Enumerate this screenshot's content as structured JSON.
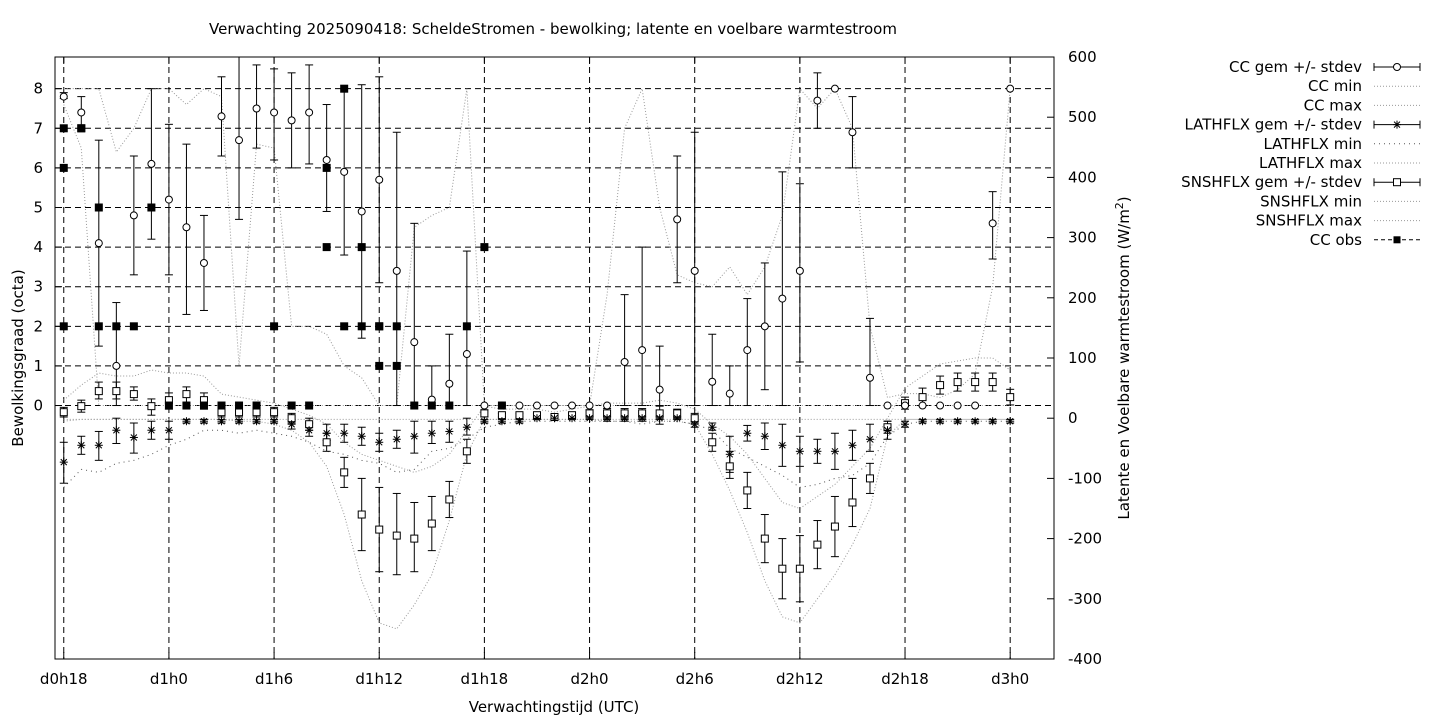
{
  "chart_data": {
    "type": "scatter",
    "title": "Verwachting 2025090418: ScheldeStromen - bewolking; latente en voelbare warmtestroom",
    "xlabel": "Verwachtingstijd (UTC)",
    "ylabel": "Bewolkingsgraad (octa)",
    "y2label_main": "Latente en Voelbare warmtestroom (W/m",
    "y2label_sup": "2",
    "y2label_end": ")",
    "xlim": [
      -0.5,
      56.5
    ],
    "ylim": [
      -6.4,
      8.8
    ],
    "y2lim": [
      -400,
      600
    ],
    "grid": true,
    "legend_position": "outside-right",
    "x_tick_positions": [
      0,
      6,
      12,
      18,
      24,
      30,
      36,
      42,
      48,
      54
    ],
    "x_tick_labels": [
      "d0h18",
      "d1h0",
      "d1h6",
      "d1h12",
      "d1h18",
      "d2h0",
      "d2h6",
      "d2h12",
      "d2h18",
      "d3h0"
    ],
    "y_ticks": [
      0,
      1,
      2,
      3,
      4,
      5,
      6,
      7,
      8
    ],
    "y2_ticks": [
      -400,
      -300,
      -200,
      -100,
      0,
      100,
      200,
      300,
      400,
      500,
      600
    ],
    "legend": [
      {
        "label": "CC gem +/- stdev",
        "style": "errbar-circle"
      },
      {
        "label": "CC min",
        "style": "dotted"
      },
      {
        "label": "CC max",
        "style": "dotted"
      },
      {
        "label": "LATHFLX gem +/- stdev",
        "style": "errbar-star"
      },
      {
        "label": "LATHFLX min",
        "style": "dotted-sparse"
      },
      {
        "label": "LATHFLX max",
        "style": "dotted"
      },
      {
        "label": "SNSHFLX gem +/- stdev",
        "style": "errbar-square"
      },
      {
        "label": "SNSHFLX min",
        "style": "dotted"
      },
      {
        "label": "SNSHFLX max",
        "style": "dotted"
      },
      {
        "label": "CC obs",
        "style": "obs-square"
      }
    ],
    "cc_mean": {
      "x": [
        0,
        1,
        2,
        3,
        4,
        5,
        6,
        7,
        8,
        9,
        10,
        11,
        12,
        13,
        14,
        15,
        16,
        17,
        18,
        19,
        20,
        21,
        22,
        23,
        24,
        25,
        26,
        27,
        28,
        29,
        30,
        31,
        32,
        33,
        34,
        35,
        36,
        37,
        38,
        39,
        40,
        41,
        42,
        43,
        44,
        45,
        46,
        47,
        48,
        49,
        50,
        51,
        52,
        53,
        54
      ],
      "y": [
        7.8,
        7.4,
        4.1,
        1.0,
        4.8,
        6.1,
        5.2,
        4.5,
        3.6,
        7.3,
        6.7,
        7.5,
        7.4,
        7.2,
        7.4,
        6.2,
        5.9,
        4.9,
        5.7,
        3.4,
        1.6,
        0.15,
        0.55,
        1.3,
        0,
        0,
        0,
        0,
        0,
        0,
        0,
        0,
        1.1,
        1.4,
        0.4,
        4.7,
        3.4,
        0.6,
        0.3,
        1.4,
        2.0,
        2.7,
        3.4,
        7.7,
        8.0,
        6.9,
        0.7,
        0,
        0,
        0,
        0,
        0,
        0,
        4.6,
        8.0
      ],
      "lo": [
        7.75,
        7.0,
        1.5,
        0,
        3.3,
        4.2,
        3.3,
        2.3,
        2.4,
        6.3,
        4.7,
        6.5,
        6.2,
        6.0,
        6.1,
        4.9,
        3.8,
        1.7,
        3.1,
        0,
        0,
        0,
        0,
        0,
        0,
        0,
        0,
        0,
        0,
        0,
        0,
        0,
        0,
        0,
        0,
        3.1,
        0,
        0,
        0,
        0,
        0.4,
        0,
        1.1,
        7.0,
        8.0,
        6.0,
        0,
        0,
        0,
        0,
        0,
        0,
        0,
        3.7,
        8.0
      ],
      "hi": [
        7.9,
        7.8,
        6.7,
        2.6,
        6.3,
        8.0,
        7.1,
        6.6,
        4.8,
        8.3,
        8.8,
        8.6,
        8.5,
        8.4,
        8.6,
        7.6,
        8.0,
        8.1,
        8.3,
        6.9,
        4.6,
        1.0,
        1.8,
        3.9,
        0,
        0,
        0,
        0,
        0,
        0,
        0,
        0,
        2.8,
        4.0,
        1.5,
        6.3,
        6.9,
        1.8,
        1.0,
        2.7,
        3.6,
        5.9,
        5.6,
        8.4,
        8.0,
        7.8,
        2.2,
        0,
        0,
        0,
        0,
        0,
        0,
        5.4,
        8.0
      ]
    },
    "cc_min": {
      "x": [
        0,
        1,
        2,
        3,
        4,
        5,
        6,
        7,
        8,
        9,
        10,
        11,
        12,
        13,
        14,
        15,
        16,
        17,
        18,
        19,
        20,
        21,
        22,
        23,
        24,
        25,
        26,
        27,
        28,
        29,
        30,
        31,
        32,
        33,
        34,
        35,
        36,
        37,
        38,
        39,
        40,
        41,
        42,
        43,
        44,
        45,
        46,
        47,
        48,
        49,
        50,
        51,
        52,
        53,
        54
      ],
      "y": [
        7.6,
        6.5,
        0,
        0,
        0,
        0,
        0,
        0,
        0,
        0,
        0,
        0,
        0,
        0,
        0,
        0,
        0,
        0,
        0,
        0,
        0,
        0,
        0,
        0,
        0,
        0,
        0,
        0,
        0,
        0,
        0,
        0,
        0,
        0,
        0,
        0,
        0,
        0,
        0,
        0,
        0,
        0,
        0,
        0,
        0,
        0,
        0,
        0,
        0,
        0,
        0,
        0,
        0,
        0,
        0
      ]
    },
    "cc_max": {
      "x": [
        0,
        1,
        2,
        3,
        4,
        5,
        6,
        7,
        8,
        9,
        10,
        11,
        12,
        13,
        14,
        15,
        16,
        17,
        18,
        19,
        20,
        21,
        22,
        23,
        24,
        25,
        26,
        27,
        28,
        29,
        30,
        31,
        32,
        33,
        34,
        35,
        36,
        37,
        38,
        39,
        40,
        41,
        42,
        43,
        44,
        45,
        46,
        47,
        48,
        49,
        50,
        51,
        52,
        53,
        54
      ],
      "y": [
        8,
        8,
        8,
        6.4,
        7.0,
        8,
        8,
        7.6,
        8,
        7.8,
        1.0,
        6.6,
        6.5,
        2.0,
        2.0,
        1.8,
        1.0,
        0.7,
        0,
        0,
        4.5,
        4.8,
        5.0,
        8,
        0,
        0,
        0,
        0,
        0,
        0,
        0,
        2.8,
        7.0,
        8,
        5.0,
        3.3,
        3.1,
        3.0,
        3.5,
        2.8,
        3.5,
        4.8,
        8,
        7.5,
        8,
        7.0,
        2.0,
        0.2,
        0.3,
        0.3,
        0.2,
        0.4,
        0.8,
        3.0,
        8
      ]
    },
    "cc_obs": {
      "x": [
        0,
        0,
        0,
        1,
        1,
        2,
        2,
        3,
        4,
        5,
        6,
        7,
        8,
        9,
        10,
        11,
        12,
        13,
        14,
        15,
        15,
        16,
        16,
        17,
        17,
        18,
        18,
        18,
        19,
        19,
        20,
        21,
        22,
        23,
        24,
        25
      ],
      "y": [
        7,
        6,
        2,
        7,
        7,
        5,
        2,
        2,
        2,
        5,
        0,
        0,
        0,
        0,
        0,
        0,
        2,
        0,
        0,
        4,
        6,
        8,
        2,
        4,
        2,
        2,
        1,
        2,
        1,
        2,
        0,
        0,
        0,
        2,
        4,
        0
      ]
    },
    "lath_mean": {
      "x": [
        0,
        1,
        2,
        3,
        4,
        5,
        6,
        7,
        8,
        9,
        10,
        11,
        12,
        13,
        14,
        15,
        16,
        17,
        18,
        19,
        20,
        21,
        22,
        23,
        24,
        25,
        26,
        27,
        28,
        29,
        30,
        31,
        32,
        33,
        34,
        35,
        36,
        37,
        38,
        39,
        40,
        41,
        42,
        43,
        44,
        45,
        46,
        47,
        48,
        49,
        50,
        51,
        52,
        53,
        54
      ],
      "y": [
        -73,
        -45,
        -45,
        -20,
        -32,
        -20,
        -20,
        -5,
        -5,
        -5,
        -5,
        -5,
        -5,
        -10,
        -20,
        -25,
        -25,
        -30,
        -40,
        -35,
        -30,
        -25,
        -22,
        -15,
        -5,
        -5,
        -5,
        0,
        0,
        0,
        0,
        0,
        0,
        0,
        0,
        0,
        -10,
        -15,
        -60,
        -25,
        -30,
        -45,
        -55,
        -55,
        -55,
        -45,
        -35,
        -20,
        -10,
        -5,
        -5,
        -5,
        -5,
        -5,
        -5
      ],
      "lo": [
        -108,
        -60,
        -70,
        -42,
        -58,
        -35,
        -35,
        -8,
        -8,
        -8,
        -8,
        -8,
        -8,
        -18,
        -30,
        -37,
        -40,
        -45,
        -55,
        -50,
        -58,
        -42,
        -40,
        -28,
        -8,
        -8,
        -8,
        -2,
        -2,
        -2,
        -2,
        -2,
        -2,
        -2,
        -2,
        -2,
        -15,
        -20,
        -90,
        -38,
        -52,
        -80,
        -80,
        -75,
        -85,
        -70,
        -55,
        -35,
        -15,
        -8,
        -8,
        -8,
        -8,
        -8,
        -8
      ],
      "hi": [
        -40,
        -30,
        -22,
        0,
        -8,
        -5,
        -5,
        -2,
        -2,
        -2,
        -2,
        -2,
        -2,
        -3,
        -8,
        -10,
        -10,
        -15,
        -25,
        -20,
        -5,
        -5,
        -5,
        0,
        -2,
        -2,
        -2,
        2,
        2,
        2,
        2,
        2,
        2,
        2,
        2,
        2,
        -5,
        -8,
        -30,
        -12,
        -8,
        -10,
        -30,
        -35,
        -25,
        -20,
        -10,
        -5,
        -5,
        -2,
        -2,
        -2,
        -2,
        -2,
        -2
      ]
    },
    "lath_min": {
      "x": [
        0,
        1,
        2,
        3,
        4,
        5,
        6,
        7,
        8,
        9,
        10,
        11,
        12,
        13,
        14,
        15,
        16,
        17,
        18,
        19,
        20,
        21,
        22,
        23,
        24,
        25,
        26,
        27,
        28,
        29,
        30,
        31,
        32,
        33,
        34,
        35,
        36,
        37,
        38,
        39,
        40,
        41,
        42,
        43,
        44,
        45,
        46,
        47,
        48,
        49,
        50,
        51,
        52,
        53,
        54
      ],
      "y": [
        -115,
        -85,
        -90,
        -75,
        -70,
        -60,
        -45,
        -35,
        -20,
        -20,
        -25,
        -20,
        -25,
        -30,
        -40,
        -55,
        -60,
        -70,
        -75,
        -90,
        -85,
        -55,
        -50,
        -35,
        -15,
        -10,
        -5,
        -5,
        -5,
        -5,
        -5,
        -5,
        -5,
        -10,
        -5,
        -5,
        -10,
        -20,
        -50,
        -65,
        -80,
        -95,
        -115,
        -110,
        -100,
        -95,
        -75,
        -30,
        -10,
        -5,
        -5,
        -5,
        -5,
        -5,
        -5
      ]
    },
    "lath_max": {
      "x": [
        0,
        1,
        2,
        3,
        4,
        5,
        6,
        7,
        8,
        9,
        10,
        11,
        12,
        13,
        14,
        15,
        16,
        17,
        18,
        19,
        20,
        21,
        22,
        23,
        24,
        25,
        26,
        27,
        28,
        29,
        30,
        31,
        32,
        33,
        34,
        35,
        36,
        37,
        38,
        39,
        40,
        41,
        42,
        43,
        44,
        45,
        46,
        47,
        48,
        49,
        50,
        51,
        52,
        53,
        54
      ],
      "y": [
        -5,
        -2,
        -2,
        -2,
        -2,
        -2,
        -2,
        -2,
        -2,
        -2,
        -2,
        -2,
        -2,
        -2,
        -2,
        -2,
        -2,
        -2,
        -2,
        -2,
        -2,
        -2,
        -2,
        -2,
        -2,
        -2,
        -2,
        -2,
        -2,
        -2,
        -2,
        -2,
        -2,
        -2,
        -2,
        -2,
        -2,
        -2,
        -2,
        -2,
        -2,
        -2,
        -2,
        -2,
        -2,
        -2,
        -2,
        -2,
        -2,
        -2,
        -2,
        -2,
        -2,
        -2,
        -2
      ]
    },
    "snsh_mean": {
      "x": [
        0,
        1,
        2,
        3,
        4,
        5,
        6,
        7,
        8,
        9,
        10,
        11,
        12,
        13,
        14,
        15,
        16,
        17,
        18,
        19,
        20,
        21,
        22,
        23,
        24,
        25,
        26,
        27,
        28,
        29,
        30,
        31,
        32,
        33,
        34,
        35,
        36,
        37,
        38,
        39,
        40,
        41,
        42,
        43,
        44,
        45,
        46,
        47,
        48,
        49,
        50,
        51,
        52,
        53,
        54
      ],
      "y": [
        10,
        20,
        45,
        45,
        40,
        20,
        30,
        40,
        30,
        10,
        10,
        10,
        10,
        0,
        -10,
        -40,
        -90,
        -160,
        -185,
        -195,
        -200,
        -175,
        -135,
        -55,
        8,
        5,
        5,
        5,
        2,
        5,
        8,
        8,
        8,
        8,
        8,
        8,
        0,
        -40,
        -80,
        -120,
        -200,
        -250,
        -250,
        -210,
        -180,
        -140,
        -100,
        -15,
        25,
        35,
        55,
        60,
        60,
        60,
        35
      ],
      "lo": [
        2,
        10,
        32,
        32,
        30,
        5,
        15,
        25,
        15,
        2,
        2,
        2,
        2,
        -8,
        -20,
        -55,
        -115,
        -220,
        -255,
        -260,
        -255,
        -220,
        -165,
        -75,
        2,
        2,
        2,
        2,
        -2,
        2,
        2,
        -5,
        -5,
        -5,
        -10,
        0,
        -8,
        -55,
        -100,
        -150,
        -240,
        -300,
        -305,
        -250,
        -230,
        -180,
        -125,
        -25,
        15,
        20,
        40,
        45,
        45,
        45,
        22
      ],
      "hi": [
        18,
        30,
        60,
        60,
        52,
        32,
        42,
        52,
        42,
        18,
        18,
        18,
        18,
        8,
        0,
        -25,
        -65,
        -100,
        -115,
        -125,
        -140,
        -130,
        -105,
        -35,
        14,
        8,
        8,
        8,
        6,
        8,
        14,
        16,
        16,
        16,
        20,
        15,
        8,
        -25,
        -55,
        -90,
        -160,
        -200,
        -195,
        -170,
        -130,
        -100,
        -75,
        -5,
        35,
        50,
        70,
        75,
        75,
        75,
        48
      ]
    },
    "snsh_min": {
      "x": [
        0,
        1,
        2,
        3,
        4,
        5,
        6,
        7,
        8,
        9,
        10,
        11,
        12,
        13,
        14,
        15,
        16,
        17,
        18,
        19,
        20,
        21,
        22,
        23,
        24,
        25,
        26,
        27,
        28,
        29,
        30,
        31,
        32,
        33,
        34,
        35,
        36,
        37,
        38,
        39,
        40,
        41,
        42,
        43,
        44,
        45,
        46,
        47,
        48,
        49,
        50,
        51,
        52,
        53,
        54
      ],
      "y": [
        -2,
        -2,
        -2,
        -2,
        -2,
        -2,
        -2,
        -2,
        -2,
        -2,
        -5,
        -5,
        -10,
        -20,
        -40,
        -80,
        -160,
        -270,
        -340,
        -350,
        -310,
        -260,
        -170,
        -60,
        -2,
        -2,
        -2,
        -2,
        -2,
        -2,
        -2,
        -5,
        -5,
        -5,
        -5,
        -5,
        -10,
        -60,
        -120,
        -190,
        -270,
        -330,
        -340,
        -300,
        -260,
        -210,
        -150,
        -30,
        -2,
        -2,
        -2,
        -2,
        -2,
        -2,
        -2
      ]
    },
    "snsh_max": {
      "x": [
        0,
        1,
        2,
        3,
        4,
        5,
        6,
        7,
        8,
        9,
        10,
        11,
        12,
        13,
        14,
        15,
        16,
        17,
        18,
        19,
        20,
        21,
        22,
        23,
        24,
        25,
        26,
        27,
        28,
        29,
        30,
        31,
        32,
        33,
        34,
        35,
        36,
        37,
        38,
        39,
        40,
        41,
        42,
        43,
        44,
        45,
        46,
        47,
        48,
        49,
        50,
        51,
        52,
        53,
        54
      ],
      "y": [
        30,
        55,
        75,
        70,
        70,
        80,
        75,
        75,
        70,
        40,
        35,
        30,
        25,
        15,
        5,
        -10,
        -40,
        -60,
        -70,
        -80,
        -90,
        -80,
        -60,
        -20,
        20,
        15,
        15,
        15,
        10,
        15,
        20,
        25,
        25,
        25,
        30,
        25,
        15,
        -10,
        -30,
        -60,
        -100,
        -140,
        -150,
        -130,
        -110,
        -80,
        -50,
        0,
        50,
        70,
        90,
        95,
        100,
        100,
        80
      ]
    }
  }
}
